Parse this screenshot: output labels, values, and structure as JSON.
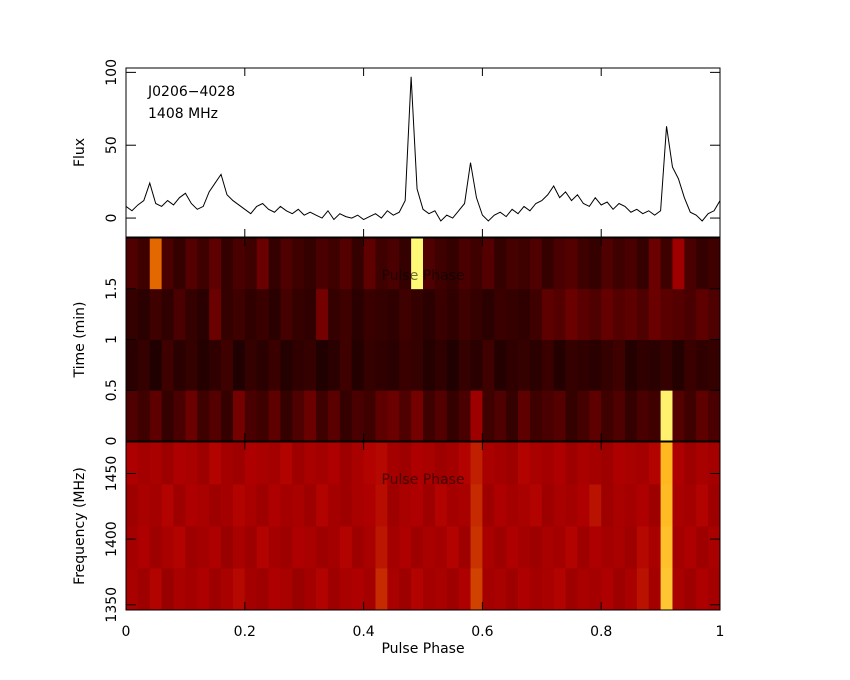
{
  "chart_data": [
    {
      "type": "line",
      "ylabel": "Flux",
      "annotations": [
        "J0206−4028",
        "1408 MHz"
      ],
      "color": "#000000",
      "x": [
        0,
        0.01,
        0.02,
        0.03,
        0.04,
        0.05,
        0.06,
        0.07,
        0.08,
        0.09,
        0.1,
        0.11,
        0.12,
        0.13,
        0.14,
        0.15,
        0.16,
        0.17,
        0.18,
        0.19,
        0.2,
        0.21,
        0.22,
        0.23,
        0.24,
        0.25,
        0.26,
        0.27,
        0.28,
        0.29,
        0.3,
        0.31,
        0.32,
        0.33,
        0.34,
        0.35,
        0.36,
        0.37,
        0.38,
        0.39,
        0.4,
        0.41,
        0.42,
        0.43,
        0.44,
        0.45,
        0.46,
        0.47,
        0.48,
        0.49,
        0.5,
        0.51,
        0.52,
        0.53,
        0.54,
        0.55,
        0.56,
        0.57,
        0.58,
        0.59,
        0.6,
        0.61,
        0.62,
        0.63,
        0.64,
        0.65,
        0.66,
        0.67,
        0.68,
        0.69,
        0.7,
        0.71,
        0.72,
        0.73,
        0.74,
        0.75,
        0.76,
        0.77,
        0.78,
        0.79,
        0.8,
        0.81,
        0.82,
        0.83,
        0.84,
        0.85,
        0.86,
        0.87,
        0.88,
        0.89,
        0.9,
        0.91,
        0.92,
        0.93,
        0.94,
        0.95,
        0.96,
        0.97,
        0.98,
        0.99,
        1
      ],
      "values": [
        8,
        5,
        9,
        12,
        24,
        10,
        8,
        12,
        9,
        14,
        17,
        10,
        6,
        8,
        18,
        24,
        30,
        16,
        12,
        9,
        6,
        3,
        8,
        10,
        6,
        4,
        8,
        5,
        3,
        6,
        2,
        4,
        2,
        0,
        5,
        -1,
        3,
        1,
        0,
        2,
        -1,
        1,
        3,
        0,
        5,
        2,
        4,
        12,
        97,
        20,
        6,
        3,
        5,
        -2,
        2,
        0,
        5,
        10,
        38,
        14,
        2,
        -2,
        2,
        4,
        1,
        6,
        3,
        8,
        5,
        10,
        12,
        16,
        22,
        14,
        18,
        12,
        16,
        10,
        8,
        14,
        9,
        11,
        6,
        10,
        8,
        4,
        6,
        3,
        5,
        2,
        5,
        63,
        35,
        27,
        14,
        4,
        2,
        -2,
        3,
        5,
        12
      ],
      "xlim": [
        0,
        1
      ],
      "ylim": [
        -13,
        103
      ],
      "yticks": [
        0,
        50,
        100
      ]
    },
    {
      "type": "heatmap",
      "ylabel": "Time (min)",
      "annotations": [
        "Pulse Phase"
      ],
      "x_bins": [
        0,
        0.02,
        0.04,
        0.06,
        0.08,
        0.1,
        0.12,
        0.14,
        0.16,
        0.18,
        0.2,
        0.22,
        0.24,
        0.26,
        0.28,
        0.3,
        0.32,
        0.34,
        0.36,
        0.38,
        0.4,
        0.42,
        0.44,
        0.46,
        0.48,
        0.5,
        0.52,
        0.54,
        0.56,
        0.58,
        0.6,
        0.62,
        0.64,
        0.66,
        0.68,
        0.7,
        0.72,
        0.74,
        0.76,
        0.78,
        0.8,
        0.82,
        0.84,
        0.86,
        0.88,
        0.9,
        0.92,
        0.94,
        0.96,
        0.98,
        1
      ],
      "y_bins": [
        0,
        0.5,
        1,
        1.5,
        2
      ],
      "values": [
        [
          0.15,
          0.12,
          0.18,
          0.1,
          0.14,
          0.2,
          0.12,
          0.16,
          0.1,
          0.22,
          0.14,
          0.12,
          0.18,
          0.1,
          0.15,
          0.2,
          0.12,
          0.17,
          0.1,
          0.14,
          0.12,
          0.18,
          0.2,
          0.15,
          0.22,
          0.12,
          0.16,
          0.1,
          0.14,
          0.3,
          0.12,
          0.15,
          0.1,
          0.18,
          0.12,
          0.14,
          0.16,
          0.1,
          0.13,
          0.18,
          0.12,
          0.15,
          0.1,
          0.14,
          0.12,
          0.95,
          0.16,
          0.12,
          0.18,
          0.14
        ],
        [
          0.08,
          0.1,
          0.06,
          0.12,
          0.08,
          0.1,
          0.07,
          0.09,
          0.12,
          0.06,
          0.1,
          0.08,
          0.11,
          0.07,
          0.09,
          0.1,
          0.06,
          0.08,
          0.12,
          0.07,
          0.1,
          0.09,
          0.08,
          0.11,
          0.1,
          0.07,
          0.09,
          0.06,
          0.1,
          0.08,
          0.12,
          0.07,
          0.09,
          0.1,
          0.08,
          0.11,
          0.07,
          0.1,
          0.09,
          0.08,
          0.1,
          0.12,
          0.07,
          0.09,
          0.08,
          0.1,
          0.07,
          0.11,
          0.09,
          0.1
        ],
        [
          0.1,
          0.08,
          0.12,
          0.09,
          0.14,
          0.1,
          0.08,
          0.2,
          0.1,
          0.12,
          0.09,
          0.11,
          0.08,
          0.13,
          0.1,
          0.09,
          0.22,
          0.1,
          0.12,
          0.08,
          0.11,
          0.1,
          0.09,
          0.12,
          0.1,
          0.08,
          0.11,
          0.09,
          0.12,
          0.1,
          0.08,
          0.11,
          0.1,
          0.09,
          0.12,
          0.18,
          0.16,
          0.2,
          0.17,
          0.15,
          0.19,
          0.16,
          0.18,
          0.15,
          0.2,
          0.17,
          0.16,
          0.14,
          0.18,
          0.15
        ],
        [
          0.15,
          0.12,
          0.55,
          0.14,
          0.1,
          0.16,
          0.12,
          0.18,
          0.1,
          0.14,
          0.12,
          0.2,
          0.1,
          0.15,
          0.12,
          0.1,
          0.14,
          0.12,
          0.16,
          0.1,
          0.18,
          0.12,
          0.14,
          0.1,
          0.98,
          0.15,
          0.12,
          0.1,
          0.14,
          0.12,
          0.16,
          0.1,
          0.13,
          0.12,
          0.15,
          0.1,
          0.14,
          0.16,
          0.12,
          0.1,
          0.15,
          0.12,
          0.14,
          0.1,
          0.2,
          0.12,
          0.3,
          0.14,
          0.1,
          0.12
        ]
      ],
      "zlim": [
        0,
        1
      ],
      "colormap": [
        "#000000",
        "#b00000",
        "#ffa000",
        "#ffff80"
      ],
      "xlim": [
        0,
        1
      ],
      "ylim": [
        0,
        2
      ],
      "yticks": [
        0,
        0.5,
        1,
        1.5
      ]
    },
    {
      "type": "heatmap",
      "ylabel": "Frequency (MHz)",
      "xlabel": "Pulse Phase",
      "annotations": [
        "Pulse Phase"
      ],
      "x_bins": [
        0,
        0.02,
        0.04,
        0.06,
        0.08,
        0.1,
        0.12,
        0.14,
        0.16,
        0.18,
        0.2,
        0.22,
        0.24,
        0.26,
        0.28,
        0.3,
        0.32,
        0.34,
        0.36,
        0.38,
        0.4,
        0.42,
        0.44,
        0.46,
        0.48,
        0.5,
        0.52,
        0.54,
        0.56,
        0.58,
        0.6,
        0.62,
        0.64,
        0.66,
        0.68,
        0.7,
        0.72,
        0.74,
        0.76,
        0.78,
        0.8,
        0.82,
        0.84,
        0.86,
        0.88,
        0.9,
        0.92,
        0.94,
        0.96,
        0.98,
        1
      ],
      "y_bins": [
        1346,
        1378,
        1410,
        1442,
        1474
      ],
      "values": [
        [
          0.32,
          0.3,
          0.34,
          0.29,
          0.32,
          0.31,
          0.33,
          0.3,
          0.32,
          0.35,
          0.31,
          0.3,
          0.33,
          0.32,
          0.29,
          0.31,
          0.34,
          0.3,
          0.32,
          0.33,
          0.31,
          0.42,
          0.32,
          0.3,
          0.34,
          0.31,
          0.32,
          0.3,
          0.33,
          0.47,
          0.31,
          0.32,
          0.3,
          0.33,
          0.31,
          0.32,
          0.34,
          0.3,
          0.32,
          0.31,
          0.33,
          0.3,
          0.32,
          0.37,
          0.31,
          0.8,
          0.32,
          0.3,
          0.33,
          0.31
        ],
        [
          0.31,
          0.33,
          0.3,
          0.32,
          0.34,
          0.3,
          0.31,
          0.33,
          0.29,
          0.32,
          0.3,
          0.34,
          0.31,
          0.3,
          0.33,
          0.32,
          0.3,
          0.31,
          0.34,
          0.3,
          0.32,
          0.38,
          0.31,
          0.33,
          0.3,
          0.32,
          0.31,
          0.34,
          0.3,
          0.44,
          0.32,
          0.3,
          0.33,
          0.31,
          0.3,
          0.32,
          0.31,
          0.34,
          0.3,
          0.33,
          0.31,
          0.32,
          0.3,
          0.35,
          0.32,
          0.78,
          0.31,
          0.33,
          0.3,
          0.32
        ],
        [
          0.3,
          0.32,
          0.31,
          0.34,
          0.3,
          0.33,
          0.32,
          0.3,
          0.31,
          0.34,
          0.32,
          0.3,
          0.33,
          0.31,
          0.32,
          0.3,
          0.34,
          0.31,
          0.3,
          0.32,
          0.33,
          0.36,
          0.3,
          0.32,
          0.33,
          0.3,
          0.34,
          0.31,
          0.32,
          0.42,
          0.3,
          0.33,
          0.31,
          0.32,
          0.34,
          0.3,
          0.32,
          0.31,
          0.33,
          0.37,
          0.3,
          0.32,
          0.31,
          0.33,
          0.3,
          0.76,
          0.32,
          0.31,
          0.34,
          0.3
        ],
        [
          0.33,
          0.31,
          0.32,
          0.3,
          0.33,
          0.32,
          0.3,
          0.34,
          0.31,
          0.3,
          0.33,
          0.32,
          0.31,
          0.34,
          0.3,
          0.32,
          0.31,
          0.33,
          0.3,
          0.32,
          0.34,
          0.35,
          0.31,
          0.3,
          0.33,
          0.32,
          0.3,
          0.31,
          0.34,
          0.4,
          0.32,
          0.31,
          0.3,
          0.34,
          0.32,
          0.31,
          0.33,
          0.3,
          0.32,
          0.31,
          0.3,
          0.33,
          0.32,
          0.31,
          0.34,
          0.75,
          0.33,
          0.3,
          0.32,
          0.31
        ]
      ],
      "zlim": [
        0,
        1
      ],
      "colormap": [
        "#000000",
        "#b00000",
        "#ffa000",
        "#ffff80"
      ],
      "xlim": [
        0,
        1
      ],
      "ylim": [
        1346,
        1474
      ],
      "yticks": [
        1350,
        1400,
        1450
      ],
      "xticks": [
        0,
        0.2,
        0.4,
        0.6,
        0.8,
        1
      ]
    }
  ]
}
